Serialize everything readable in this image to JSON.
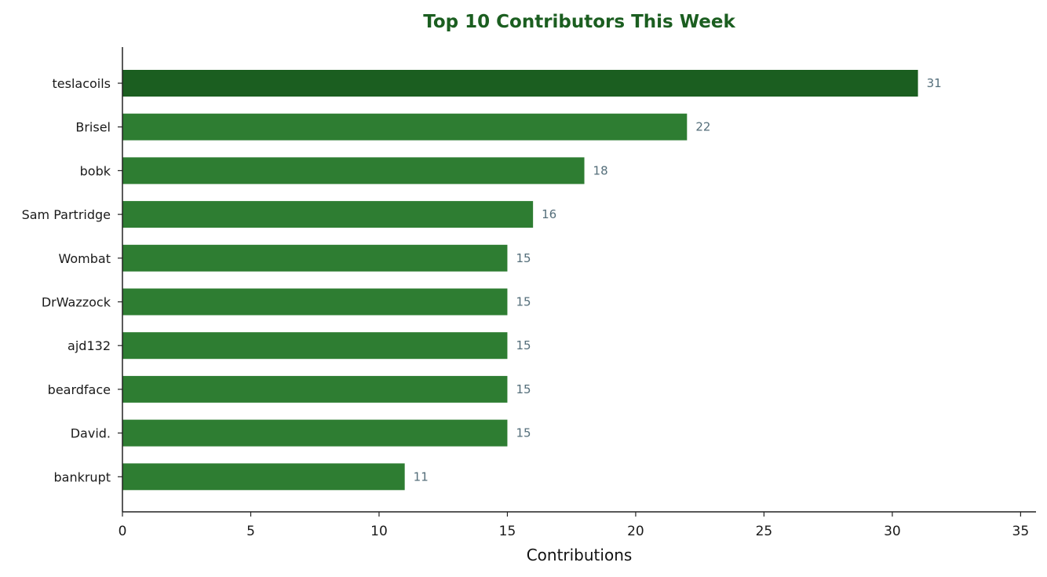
{
  "chart_data": {
    "type": "bar",
    "orientation": "horizontal",
    "title": "Top 10 Contributors This Week",
    "xlabel": "Contributions",
    "ylabel": "",
    "categories": [
      "teslacoils",
      "Brisel",
      "bobk",
      "Sam Partridge",
      "Wombat",
      "DrWazzock",
      "ajd132",
      "beardface",
      "David.",
      "bankrupt"
    ],
    "values": [
      31,
      22,
      18,
      16,
      15,
      15,
      15,
      15,
      15,
      11
    ],
    "value_labels": [
      "31",
      "22",
      "18",
      "16",
      "15",
      "15",
      "15",
      "15",
      "15",
      "11"
    ],
    "xlim": [
      0,
      35.6
    ],
    "xticks": [
      0,
      5,
      10,
      15,
      20,
      25,
      30,
      35
    ],
    "xtick_labels": [
      "0",
      "5",
      "10",
      "15",
      "20",
      "25",
      "30",
      "35"
    ],
    "grid": false,
    "legend": "none"
  },
  "colors": {
    "title": "#1b5e20",
    "top_bar": "#1b5e20",
    "bar": "#2e7d32",
    "value_label": "#546e7a",
    "axis": "#222222"
  }
}
